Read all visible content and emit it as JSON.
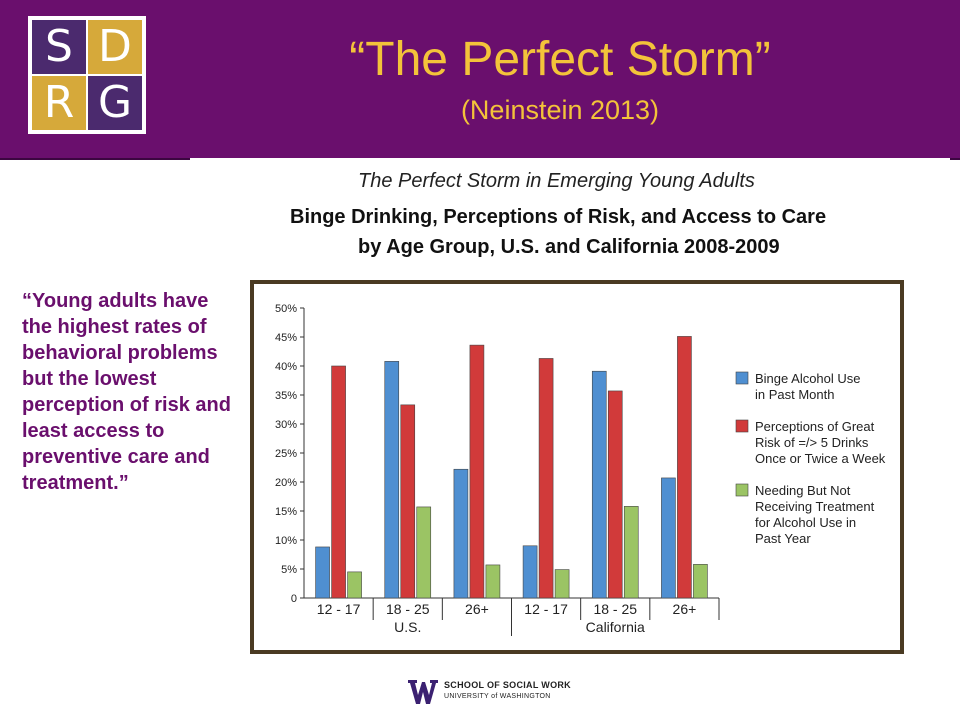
{
  "slide": {
    "title": "“The Perfect Storm”",
    "subtitle": "(Neinstein 2013)",
    "logo_letters": [
      "S",
      "D",
      "R",
      "G"
    ]
  },
  "quote": {
    "text": "“Young adults have the highest rates of behavioral problems but the lowest perception of risk and least access to preventive care and treatment.”"
  },
  "figure": {
    "kicker": "The Perfect Storm in Emerging Young Adults",
    "title_line1": "Binge Drinking, Perceptions of Risk, and Access to Care",
    "title_line2": "by Age Group, U.S. and California 2008-2009"
  },
  "footer": {
    "line1": "SCHOOL OF SOCIAL WORK",
    "line2": "UNIVERSITY of WASHINGTON"
  },
  "colors": {
    "header_bg": "#6a0f6d",
    "title_gold": "#f3c33a",
    "quote_purple": "#6a0f6d",
    "logo_purple": "#4b2a6e",
    "logo_gold": "#d6a93a",
    "series_blue": "#4f8fd1",
    "series_red": "#d13a3a",
    "series_green": "#9bc464"
  },
  "chart_data": {
    "type": "bar",
    "categories": [
      "12 - 17",
      "18 - 25",
      "26+",
      "12 - 17",
      "18 - 25",
      "26+"
    ],
    "groups": [
      {
        "label": "U.S.",
        "categories": [
          "12 - 17",
          "18 - 25",
          "26+"
        ]
      },
      {
        "label": "California",
        "categories": [
          "12 - 17",
          "18 - 25",
          "26+"
        ]
      }
    ],
    "series": [
      {
        "name": "Binge Alcohol Use in Past Month",
        "legend_lines": [
          "Binge Alcohol Use",
          "in Past Month"
        ],
        "color": "#4f8fd1",
        "values": [
          8.8,
          40.8,
          22.2,
          9.0,
          39.1,
          20.7
        ]
      },
      {
        "name": "Perceptions of Great Risk of =/> 5 Drinks Once or Twice a Week",
        "legend_lines": [
          "Perceptions of Great",
          "Risk of =/> 5 Drinks",
          "Once or Twice a Week"
        ],
        "color": "#d13a3a",
        "values": [
          40.0,
          33.3,
          43.6,
          41.3,
          35.7,
          45.1
        ]
      },
      {
        "name": "Needing But Not Receiving Treatment for Alcohol Use in Past Year",
        "legend_lines": [
          "Needing But Not",
          "Receiving Treatment",
          "for Alcohol Use in",
          "Past Year"
        ],
        "color": "#9bc464",
        "values": [
          4.5,
          15.7,
          5.7,
          4.9,
          15.8,
          5.8
        ]
      }
    ],
    "y_ticks": [
      "0",
      "5%",
      "10%",
      "15%",
      "20%",
      "25%",
      "30%",
      "35%",
      "40%",
      "45%",
      "50%"
    ],
    "ylim": [
      0,
      50
    ],
    "grid": true,
    "legend_position": "right"
  }
}
